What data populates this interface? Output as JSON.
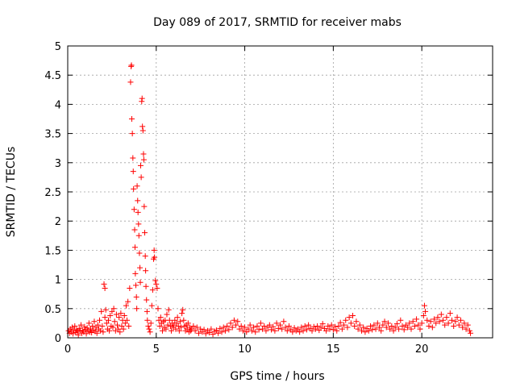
{
  "chart_data": {
    "type": "scatter",
    "title": "Day 089 of 2017, SRMTID for receiver mabs",
    "xlabel": "GPS time / hours",
    "ylabel": "SRMTID / TECUs",
    "xlim": [
      0,
      24
    ],
    "ylim": [
      0,
      5
    ],
    "x_ticks": [
      0,
      5,
      10,
      15,
      20
    ],
    "y_ticks": [
      0,
      0.5,
      1,
      1.5,
      2,
      2.5,
      3,
      3.5,
      4,
      4.5,
      5
    ],
    "x_tick_labels": [
      "0",
      "5",
      "10",
      "15",
      "20"
    ],
    "y_tick_labels": [
      "0",
      "0.5",
      "1",
      "1.5",
      "2",
      "2.5",
      "3",
      "3.5",
      "4",
      "4.5",
      "5"
    ],
    "grid": true,
    "marker": "plus",
    "color": "#ff0000",
    "series": [
      {
        "name": "",
        "points": [
          [
            0.05,
            0.12
          ],
          [
            0.1,
            0.08
          ],
          [
            0.15,
            0.15
          ],
          [
            0.2,
            0.1
          ],
          [
            0.25,
            0.18
          ],
          [
            0.3,
            0.07
          ],
          [
            0.35,
            0.13
          ],
          [
            0.4,
            0.2
          ],
          [
            0.45,
            0.09
          ],
          [
            0.5,
            0.14
          ],
          [
            0.55,
            0.11
          ],
          [
            0.6,
            0.05
          ],
          [
            0.65,
            0.16
          ],
          [
            0.7,
            0.12
          ],
          [
            0.75,
            0.22
          ],
          [
            0.8,
            0.08
          ],
          [
            0.85,
            0.13
          ],
          [
            0.9,
            0.1
          ],
          [
            0.95,
            0.19
          ],
          [
            1.0,
            0.14
          ],
          [
            1.05,
            0.07
          ],
          [
            1.1,
            0.17
          ],
          [
            1.15,
            0.12
          ],
          [
            1.2,
            0.25
          ],
          [
            1.25,
            0.1
          ],
          [
            1.3,
            0.15
          ],
          [
            1.35,
            0.09
          ],
          [
            1.4,
            0.2
          ],
          [
            1.45,
            0.13
          ],
          [
            1.5,
            0.28
          ],
          [
            1.55,
            0.11
          ],
          [
            1.6,
            0.18
          ],
          [
            1.65,
            0.08
          ],
          [
            1.7,
            0.22
          ],
          [
            1.75,
            0.15
          ],
          [
            1.8,
            0.3
          ],
          [
            1.85,
            0.12
          ],
          [
            1.9,
            0.45
          ],
          [
            1.95,
            0.2
          ],
          [
            2.0,
            0.1
          ],
          [
            2.05,
            0.92
          ],
          [
            2.1,
            0.85
          ],
          [
            2.1,
            0.35
          ],
          [
            2.15,
            0.48
          ],
          [
            2.2,
            0.25
          ],
          [
            2.25,
            0.15
          ],
          [
            2.3,
            0.3
          ],
          [
            2.35,
            0.12
          ],
          [
            2.4,
            0.38
          ],
          [
            2.45,
            0.2
          ],
          [
            2.5,
            0.45
          ],
          [
            2.55,
            0.18
          ],
          [
            2.6,
            0.5
          ],
          [
            2.65,
            0.28
          ],
          [
            2.7,
            0.12
          ],
          [
            2.75,
            0.4
          ],
          [
            2.8,
            0.22
          ],
          [
            2.85,
            0.15
          ],
          [
            2.9,
            0.35
          ],
          [
            2.95,
            0.1
          ],
          [
            3.0,
            0.42
          ],
          [
            3.05,
            0.2
          ],
          [
            3.1,
            0.3
          ],
          [
            3.15,
            0.15
          ],
          [
            3.2,
            0.38
          ],
          [
            3.25,
            0.25
          ],
          [
            3.3,
            0.55
          ],
          [
            3.35,
            0.3
          ],
          [
            3.4,
            0.62
          ],
          [
            3.45,
            0.2
          ],
          [
            3.5,
            0.85
          ],
          [
            3.55,
            4.38
          ],
          [
            3.58,
            4.65
          ],
          [
            3.6,
            4.67
          ],
          [
            3.62,
            3.75
          ],
          [
            3.65,
            3.5
          ],
          [
            3.68,
            3.08
          ],
          [
            3.7,
            2.85
          ],
          [
            3.72,
            2.55
          ],
          [
            3.75,
            2.2
          ],
          [
            3.78,
            1.85
          ],
          [
            3.8,
            1.55
          ],
          [
            3.82,
            1.1
          ],
          [
            3.85,
            0.9
          ],
          [
            3.88,
            0.7
          ],
          [
            3.9,
            0.5
          ],
          [
            3.92,
            2.6
          ],
          [
            3.95,
            2.35
          ],
          [
            3.97,
            2.15
          ],
          [
            4.0,
            1.95
          ],
          [
            4.02,
            1.75
          ],
          [
            4.05,
            1.45
          ],
          [
            4.08,
            1.2
          ],
          [
            4.1,
            0.95
          ],
          [
            4.12,
            2.95
          ],
          [
            4.15,
            2.75
          ],
          [
            4.18,
            4.05
          ],
          [
            4.2,
            4.1
          ],
          [
            4.22,
            3.62
          ],
          [
            4.25,
            3.55
          ],
          [
            4.28,
            3.15
          ],
          [
            4.3,
            3.05
          ],
          [
            4.32,
            2.25
          ],
          [
            4.35,
            1.8
          ],
          [
            4.38,
            1.4
          ],
          [
            4.4,
            1.15
          ],
          [
            4.42,
            0.88
          ],
          [
            4.45,
            0.65
          ],
          [
            4.48,
            0.45
          ],
          [
            4.5,
            0.3
          ],
          [
            4.55,
            0.2
          ],
          [
            4.6,
            0.15
          ],
          [
            4.65,
            0.1
          ],
          [
            4.7,
            0.25
          ],
          [
            4.75,
            0.55
          ],
          [
            4.8,
            0.82
          ],
          [
            4.85,
            1.35
          ],
          [
            4.88,
            1.5
          ],
          [
            4.9,
            1.38
          ],
          [
            4.95,
            0.98
          ],
          [
            5.0,
            0.92
          ],
          [
            5.05,
            0.85
          ],
          [
            5.1,
            0.5
          ],
          [
            5.15,
            0.3
          ],
          [
            5.2,
            0.2
          ],
          [
            5.25,
            0.35
          ],
          [
            5.3,
            0.25
          ],
          [
            5.35,
            0.12
          ],
          [
            5.4,
            0.28
          ],
          [
            5.45,
            0.18
          ],
          [
            5.5,
            0.3
          ],
          [
            5.55,
            0.15
          ],
          [
            5.6,
            0.4
          ],
          [
            5.65,
            0.22
          ],
          [
            5.7,
            0.48
          ],
          [
            5.75,
            0.3
          ],
          [
            5.8,
            0.2
          ],
          [
            5.85,
            0.12
          ],
          [
            5.9,
            0.25
          ],
          [
            5.95,
            0.18
          ],
          [
            6.0,
            0.22
          ],
          [
            6.05,
            0.3
          ],
          [
            6.1,
            0.15
          ],
          [
            6.15,
            0.25
          ],
          [
            6.2,
            0.35
          ],
          [
            6.25,
            0.2
          ],
          [
            6.3,
            0.12
          ],
          [
            6.35,
            0.28
          ],
          [
            6.4,
            0.18
          ],
          [
            6.45,
            0.42
          ],
          [
            6.5,
            0.48
          ],
          [
            6.55,
            0.3
          ],
          [
            6.6,
            0.2
          ],
          [
            6.65,
            0.12
          ],
          [
            6.7,
            0.22
          ],
          [
            6.75,
            0.15
          ],
          [
            6.8,
            0.25
          ],
          [
            6.85,
            0.1
          ],
          [
            6.9,
            0.18
          ],
          [
            6.95,
            0.12
          ],
          [
            7.0,
            0.15
          ],
          [
            7.1,
            0.2
          ],
          [
            7.2,
            0.12
          ],
          [
            7.3,
            0.18
          ],
          [
            7.4,
            0.08
          ],
          [
            7.5,
            0.15
          ],
          [
            7.6,
            0.1
          ],
          [
            7.7,
            0.14
          ],
          [
            7.8,
            0.07
          ],
          [
            7.9,
            0.12
          ],
          [
            8.0,
            0.09
          ],
          [
            8.1,
            0.15
          ],
          [
            8.2,
            0.06
          ],
          [
            8.3,
            0.11
          ],
          [
            8.4,
            0.13
          ],
          [
            8.5,
            0.08
          ],
          [
            8.6,
            0.16
          ],
          [
            8.7,
            0.1
          ],
          [
            8.8,
            0.18
          ],
          [
            8.9,
            0.12
          ],
          [
            9.0,
            0.2
          ],
          [
            9.1,
            0.14
          ],
          [
            9.2,
            0.25
          ],
          [
            9.3,
            0.18
          ],
          [
            9.4,
            0.3
          ],
          [
            9.5,
            0.22
          ],
          [
            9.6,
            0.28
          ],
          [
            9.7,
            0.15
          ],
          [
            9.8,
            0.2
          ],
          [
            9.9,
            0.12
          ],
          [
            10.0,
            0.18
          ],
          [
            10.1,
            0.1
          ],
          [
            10.2,
            0.15
          ],
          [
            10.3,
            0.22
          ],
          [
            10.4,
            0.12
          ],
          [
            10.5,
            0.18
          ],
          [
            10.6,
            0.1
          ],
          [
            10.7,
            0.2
          ],
          [
            10.8,
            0.14
          ],
          [
            10.9,
            0.25
          ],
          [
            11.0,
            0.15
          ],
          [
            11.1,
            0.2
          ],
          [
            11.2,
            0.12
          ],
          [
            11.3,
            0.18
          ],
          [
            11.4,
            0.22
          ],
          [
            11.5,
            0.14
          ],
          [
            11.6,
            0.19
          ],
          [
            11.7,
            0.12
          ],
          [
            11.8,
            0.25
          ],
          [
            11.9,
            0.16
          ],
          [
            12.0,
            0.22
          ],
          [
            12.1,
            0.15
          ],
          [
            12.2,
            0.28
          ],
          [
            12.3,
            0.18
          ],
          [
            12.4,
            0.12
          ],
          [
            12.5,
            0.2
          ],
          [
            12.6,
            0.14
          ],
          [
            12.7,
            0.1
          ],
          [
            12.8,
            0.17
          ],
          [
            12.9,
            0.12
          ],
          [
            13.0,
            0.15
          ],
          [
            13.1,
            0.1
          ],
          [
            13.2,
            0.18
          ],
          [
            13.3,
            0.12
          ],
          [
            13.4,
            0.2
          ],
          [
            13.5,
            0.14
          ],
          [
            13.6,
            0.22
          ],
          [
            13.7,
            0.16
          ],
          [
            13.8,
            0.12
          ],
          [
            13.9,
            0.19
          ],
          [
            14.0,
            0.15
          ],
          [
            14.1,
            0.2
          ],
          [
            14.2,
            0.13
          ],
          [
            14.3,
            0.18
          ],
          [
            14.4,
            0.24
          ],
          [
            14.5,
            0.16
          ],
          [
            14.6,
            0.12
          ],
          [
            14.7,
            0.2
          ],
          [
            14.8,
            0.15
          ],
          [
            14.9,
            0.22
          ],
          [
            15.0,
            0.14
          ],
          [
            15.1,
            0.19
          ],
          [
            15.2,
            0.12
          ],
          [
            15.3,
            0.2
          ],
          [
            15.4,
            0.26
          ],
          [
            15.5,
            0.15
          ],
          [
            15.6,
            0.22
          ],
          [
            15.7,
            0.3
          ],
          [
            15.8,
            0.18
          ],
          [
            15.9,
            0.35
          ],
          [
            16.0,
            0.25
          ],
          [
            16.1,
            0.38
          ],
          [
            16.2,
            0.2
          ],
          [
            16.3,
            0.28
          ],
          [
            16.4,
            0.15
          ],
          [
            16.5,
            0.22
          ],
          [
            16.6,
            0.12
          ],
          [
            16.7,
            0.18
          ],
          [
            16.8,
            0.1
          ],
          [
            16.9,
            0.16
          ],
          [
            17.0,
            0.12
          ],
          [
            17.1,
            0.2
          ],
          [
            17.2,
            0.14
          ],
          [
            17.3,
            0.22
          ],
          [
            17.4,
            0.15
          ],
          [
            17.5,
            0.25
          ],
          [
            17.6,
            0.18
          ],
          [
            17.7,
            0.12
          ],
          [
            17.8,
            0.22
          ],
          [
            17.9,
            0.28
          ],
          [
            18.0,
            0.18
          ],
          [
            18.1,
            0.25
          ],
          [
            18.2,
            0.15
          ],
          [
            18.3,
            0.2
          ],
          [
            18.4,
            0.12
          ],
          [
            18.5,
            0.18
          ],
          [
            18.6,
            0.24
          ],
          [
            18.7,
            0.15
          ],
          [
            18.8,
            0.3
          ],
          [
            18.9,
            0.2
          ],
          [
            19.0,
            0.14
          ],
          [
            19.1,
            0.22
          ],
          [
            19.2,
            0.18
          ],
          [
            19.3,
            0.25
          ],
          [
            19.4,
            0.15
          ],
          [
            19.5,
            0.28
          ],
          [
            19.6,
            0.2
          ],
          [
            19.7,
            0.32
          ],
          [
            19.8,
            0.22
          ],
          [
            19.9,
            0.15
          ],
          [
            20.0,
            0.25
          ],
          [
            20.1,
            0.38
          ],
          [
            20.15,
            0.55
          ],
          [
            20.2,
            0.45
          ],
          [
            20.3,
            0.3
          ],
          [
            20.4,
            0.2
          ],
          [
            20.5,
            0.28
          ],
          [
            20.6,
            0.18
          ],
          [
            20.7,
            0.32
          ],
          [
            20.8,
            0.25
          ],
          [
            20.9,
            0.35
          ],
          [
            21.0,
            0.28
          ],
          [
            21.1,
            0.4
          ],
          [
            21.2,
            0.3
          ],
          [
            21.3,
            0.22
          ],
          [
            21.4,
            0.35
          ],
          [
            21.5,
            0.25
          ],
          [
            21.6,
            0.42
          ],
          [
            21.7,
            0.3
          ],
          [
            21.8,
            0.2
          ],
          [
            21.9,
            0.28
          ],
          [
            22.0,
            0.35
          ],
          [
            22.1,
            0.22
          ],
          [
            22.2,
            0.3
          ],
          [
            22.3,
            0.18
          ],
          [
            22.4,
            0.25
          ],
          [
            22.5,
            0.15
          ],
          [
            22.6,
            0.22
          ],
          [
            22.7,
            0.12
          ],
          [
            22.75,
            0.08
          ]
        ]
      }
    ]
  }
}
